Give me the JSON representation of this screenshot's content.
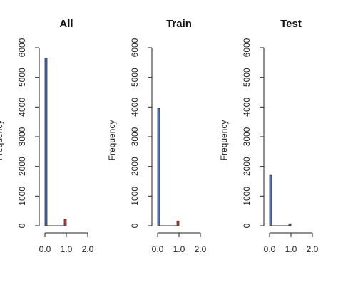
{
  "chart_data": [
    {
      "type": "bar",
      "title": "All",
      "xlabel": "",
      "ylabel": "Frequency",
      "xlim": [
        0,
        2
      ],
      "ylim": [
        0,
        6000
      ],
      "xticks": [
        "0.0",
        "1.0",
        "2.0"
      ],
      "yticks": [
        "0",
        "1000",
        "2000",
        "3000",
        "4000",
        "5000",
        "6000"
      ],
      "bins": [
        {
          "x0": 0.0,
          "x1": 0.1,
          "value": 5650,
          "color": "#4f74c6"
        },
        {
          "x0": 0.9,
          "x1": 1.0,
          "value": 220,
          "color": "#c0392b"
        }
      ]
    },
    {
      "type": "bar",
      "title": "Train",
      "xlabel": "",
      "ylabel": "Frequency",
      "xlim": [
        0,
        2
      ],
      "ylim": [
        0,
        6000
      ],
      "xticks": [
        "0.0",
        "1.0",
        "2.0"
      ],
      "yticks": [
        "0",
        "1000",
        "2000",
        "3000",
        "4000",
        "5000",
        "6000"
      ],
      "bins": [
        {
          "x0": 0.0,
          "x1": 0.1,
          "value": 3950,
          "color": "#4f74c6"
        },
        {
          "x0": 0.9,
          "x1": 1.0,
          "value": 160,
          "color": "#c0392b"
        }
      ]
    },
    {
      "type": "bar",
      "title": "Test",
      "xlabel": "",
      "ylabel": "Frequency",
      "xlim": [
        0,
        2
      ],
      "ylim": [
        0,
        6000
      ],
      "xticks": [
        "0.0",
        "1.0",
        "2.0"
      ],
      "yticks": [
        "0",
        "1000",
        "2000",
        "3000",
        "4000",
        "5000",
        "6000"
      ],
      "bins": [
        {
          "x0": 0.0,
          "x1": 0.1,
          "value": 1700,
          "color": "#4f74c6"
        },
        {
          "x0": 0.9,
          "x1": 1.0,
          "value": 65,
          "color": "#c0392b"
        }
      ]
    }
  ]
}
